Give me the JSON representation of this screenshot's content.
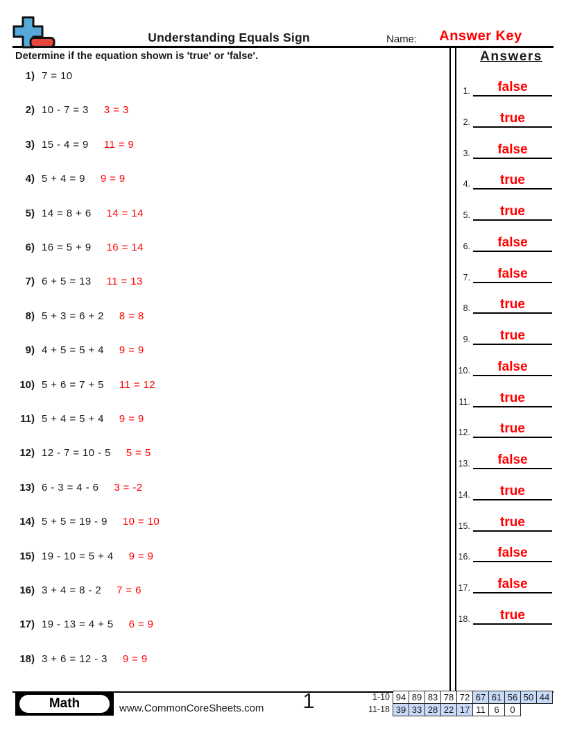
{
  "colors": {
    "accent_red": "#ff0000",
    "logo_blue": "#56aadb",
    "logo_red": "#e8473f",
    "score_blue": "#c9daf8"
  },
  "header": {
    "title": "Understanding Equals Sign",
    "name_label": "Name:",
    "name_value": "Answer Key"
  },
  "instruction": "Determine if the equation shown is 'true' or 'false'.",
  "answers_panel": {
    "title": "Answers",
    "items": [
      {
        "num": "1.",
        "value": "false"
      },
      {
        "num": "2.",
        "value": "true"
      },
      {
        "num": "3.",
        "value": "false"
      },
      {
        "num": "4.",
        "value": "true"
      },
      {
        "num": "5.",
        "value": "true"
      },
      {
        "num": "6.",
        "value": "false"
      },
      {
        "num": "7.",
        "value": "false"
      },
      {
        "num": "8.",
        "value": "true"
      },
      {
        "num": "9.",
        "value": "true"
      },
      {
        "num": "10.",
        "value": "false"
      },
      {
        "num": "11.",
        "value": "true"
      },
      {
        "num": "12.",
        "value": "true"
      },
      {
        "num": "13.",
        "value": "false"
      },
      {
        "num": "14.",
        "value": "true"
      },
      {
        "num": "15.",
        "value": "true"
      },
      {
        "num": "16.",
        "value": "false"
      },
      {
        "num": "17.",
        "value": "false"
      },
      {
        "num": "18.",
        "value": "true"
      }
    ]
  },
  "questions": [
    {
      "num": "1)",
      "equation": "7 = 10",
      "evaluation": ""
    },
    {
      "num": "2)",
      "equation": "10 - 7 = 3",
      "evaluation": "3 = 3"
    },
    {
      "num": "3)",
      "equation": "15 - 4 = 9",
      "evaluation": "11 = 9"
    },
    {
      "num": "4)",
      "equation": "5 + 4 = 9",
      "evaluation": "9 = 9"
    },
    {
      "num": "5)",
      "equation": "14 = 8 + 6",
      "evaluation": "14 = 14"
    },
    {
      "num": "6)",
      "equation": "16 = 5 + 9",
      "evaluation": "16 = 14"
    },
    {
      "num": "7)",
      "equation": "6 + 5 = 13",
      "evaluation": "11 = 13"
    },
    {
      "num": "8)",
      "equation": "5 + 3 = 6 + 2",
      "evaluation": "8 = 8"
    },
    {
      "num": "9)",
      "equation": "4 + 5 = 5 + 4",
      "evaluation": "9 = 9"
    },
    {
      "num": "10)",
      "equation": "5 + 6 = 7 + 5",
      "evaluation": "11 = 12"
    },
    {
      "num": "11)",
      "equation": "5 + 4 = 5 + 4",
      "evaluation": "9 = 9"
    },
    {
      "num": "12)",
      "equation": "12 - 7 = 10 - 5",
      "evaluation": "5 = 5"
    },
    {
      "num": "13)",
      "equation": "6 - 3 = 4 - 6",
      "evaluation": "3 = -2"
    },
    {
      "num": "14)",
      "equation": "5 + 5 = 19 - 9",
      "evaluation": "10 = 10"
    },
    {
      "num": "15)",
      "equation": "19 - 10 = 5 + 4",
      "evaluation": "9 = 9"
    },
    {
      "num": "16)",
      "equation": "3 + 4 = 8 - 2",
      "evaluation": "7 = 6"
    },
    {
      "num": "17)",
      "equation": "19 - 13 = 4 + 5",
      "evaluation": "6 = 9"
    },
    {
      "num": "18)",
      "equation": "3 + 6 = 12 - 3",
      "evaluation": "9 = 9"
    }
  ],
  "footer": {
    "subject": "Math",
    "website": "www.CommonCoreSheets.com",
    "page_number": "1",
    "score_table": {
      "row1": {
        "label": "1-10",
        "cells": [
          {
            "v": "94",
            "blue": false
          },
          {
            "v": "89",
            "blue": false
          },
          {
            "v": "83",
            "blue": false
          },
          {
            "v": "78",
            "blue": false
          },
          {
            "v": "72",
            "blue": false
          },
          {
            "v": "67",
            "blue": true
          },
          {
            "v": "61",
            "blue": true
          },
          {
            "v": "56",
            "blue": true
          },
          {
            "v": "50",
            "blue": true
          },
          {
            "v": "44",
            "blue": true
          }
        ]
      },
      "row2": {
        "label": "11-18",
        "cells": [
          {
            "v": "39",
            "blue": true
          },
          {
            "v": "33",
            "blue": true
          },
          {
            "v": "28",
            "blue": true
          },
          {
            "v": "22",
            "blue": true
          },
          {
            "v": "17",
            "blue": true
          },
          {
            "v": "11",
            "blue": false
          },
          {
            "v": "6",
            "blue": false
          },
          {
            "v": "0",
            "blue": false
          }
        ]
      }
    }
  }
}
